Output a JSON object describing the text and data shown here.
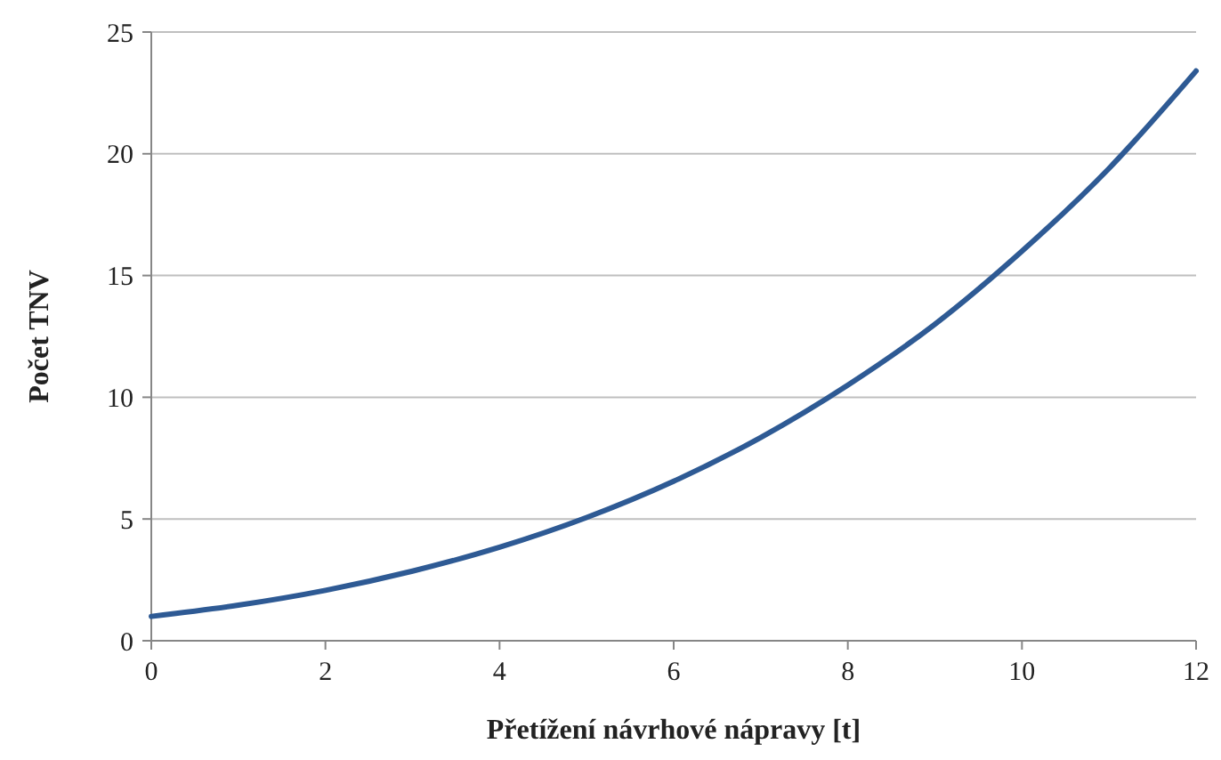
{
  "chart_data": {
    "type": "line",
    "xlabel": "Přetížení návrhové nápravy [t]",
    "ylabel": "Počet TNV",
    "x": [
      0,
      1,
      2,
      3,
      4,
      5,
      6,
      7,
      8,
      9,
      10,
      11,
      12
    ],
    "series": [
      {
        "color": "#2e5a94",
        "values": [
          1,
          1.46,
          2.07,
          2.86,
          3.84,
          5.06,
          6.55,
          8.35,
          10.5,
          13,
          16,
          19.4,
          23.4
        ]
      }
    ],
    "xlim": [
      0,
      12
    ],
    "xticks": [
      0,
      2,
      4,
      6,
      8,
      10,
      12
    ],
    "ylim": [
      0,
      25
    ],
    "yticks": [
      0,
      5,
      10,
      15,
      20,
      25
    ],
    "grid": "y",
    "marker": "none",
    "line_style": "solid"
  }
}
